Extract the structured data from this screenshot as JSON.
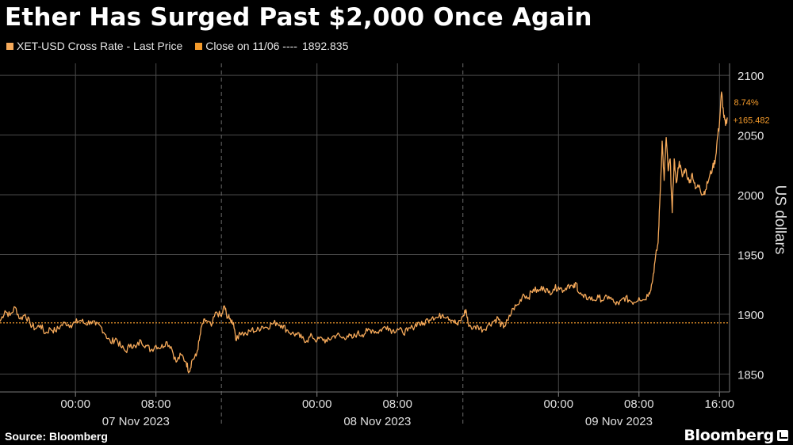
{
  "title": "Ether Has Surged Past $2,000 Once Again",
  "legend": [
    {
      "label": "XET-USD Cross Rate - Last Price",
      "color": "#f5a95a"
    },
    {
      "label": "Close on 11/06 ----",
      "value": "1892.835",
      "color": "#f39a2b"
    }
  ],
  "source": "Source: Bloomberg",
  "brand": "Bloomberg",
  "chart_data": {
    "type": "line",
    "ylabel": "US dollars",
    "ylim": [
      1835,
      2110
    ],
    "y_ticks": [
      1850,
      1900,
      1950,
      2000,
      2050,
      2100
    ],
    "x_range_hours": [
      -7.5,
      65
    ],
    "x_time_ticks": [
      {
        "h": 0,
        "label": "00:00"
      },
      {
        "h": 8,
        "label": "08:00"
      },
      {
        "h": 24,
        "label": "00:00"
      },
      {
        "h": 32,
        "label": "08:00"
      },
      {
        "h": 48,
        "label": "00:00"
      },
      {
        "h": 56,
        "label": "08:00"
      },
      {
        "h": 64,
        "label": "16:00"
      }
    ],
    "x_date_labels": [
      {
        "h": 6,
        "label": "07 Nov 2023"
      },
      {
        "h": 30,
        "label": "08 Nov 2023"
      },
      {
        "h": 54,
        "label": "09 Nov 2023"
      }
    ],
    "day_separators_h": [
      14.5,
      38.5
    ],
    "grid": true,
    "reference_line": {
      "label": "Close on 11/06",
      "value": 1892.835
    },
    "annotations": {
      "pct": "8.74%",
      "change": "+165.482"
    },
    "series": [
      {
        "name": "XET-USD Cross Rate - Last Price",
        "color": "#f5a95a",
        "points": [
          [
            -7.5,
            1894
          ],
          [
            -7.0,
            1903
          ],
          [
            -6.5,
            1899
          ],
          [
            -6.0,
            1906
          ],
          [
            -5.5,
            1896
          ],
          [
            -5.0,
            1900
          ],
          [
            -4.5,
            1892
          ],
          [
            -4.0,
            1888
          ],
          [
            -3.5,
            1891
          ],
          [
            -3.0,
            1884
          ],
          [
            -2.5,
            1888
          ],
          [
            -2.0,
            1886
          ],
          [
            -1.5,
            1890
          ],
          [
            -1.0,
            1893
          ],
          [
            -0.5,
            1891
          ],
          [
            0,
            1893
          ],
          [
            0.5,
            1895
          ],
          [
            1.0,
            1892
          ],
          [
            1.5,
            1894
          ],
          [
            2.0,
            1891
          ],
          [
            2.5,
            1890
          ],
          [
            3.0,
            1883
          ],
          [
            3.5,
            1876
          ],
          [
            4.0,
            1880
          ],
          [
            4.5,
            1873
          ],
          [
            5.0,
            1869
          ],
          [
            5.5,
            1875
          ],
          [
            6.0,
            1872
          ],
          [
            6.5,
            1878
          ],
          [
            7.0,
            1874
          ],
          [
            7.5,
            1870
          ],
          [
            8.0,
            1874
          ],
          [
            8.5,
            1872
          ],
          [
            9.0,
            1877
          ],
          [
            9.5,
            1873
          ],
          [
            10.0,
            1860
          ],
          [
            10.5,
            1866
          ],
          [
            11.0,
            1860
          ],
          [
            11.3,
            1852
          ],
          [
            11.6,
            1862
          ],
          [
            12.0,
            1865
          ],
          [
            12.3,
            1878
          ],
          [
            12.6,
            1892
          ],
          [
            13.0,
            1895
          ],
          [
            13.5,
            1890
          ],
          [
            14.0,
            1902
          ],
          [
            14.5,
            1898
          ],
          [
            14.8,
            1907
          ],
          [
            15.0,
            1900
          ],
          [
            15.3,
            1896
          ],
          [
            15.7,
            1893
          ],
          [
            16.0,
            1878
          ],
          [
            16.3,
            1885
          ],
          [
            17.0,
            1883
          ],
          [
            17.5,
            1887
          ],
          [
            18.0,
            1886
          ],
          [
            18.5,
            1890
          ],
          [
            19.0,
            1889
          ],
          [
            19.5,
            1892
          ],
          [
            20.0,
            1893
          ],
          [
            20.5,
            1891
          ],
          [
            21.0,
            1887
          ],
          [
            21.5,
            1884
          ],
          [
            22.0,
            1883
          ],
          [
            22.5,
            1880
          ],
          [
            23.0,
            1878
          ],
          [
            23.5,
            1882
          ],
          [
            24.0,
            1878
          ],
          [
            24.5,
            1880
          ],
          [
            25.0,
            1877
          ],
          [
            25.5,
            1881
          ],
          [
            26.0,
            1883
          ],
          [
            26.5,
            1880
          ],
          [
            27.0,
            1882
          ],
          [
            27.5,
            1880
          ],
          [
            28.0,
            1884
          ],
          [
            28.5,
            1883
          ],
          [
            29.0,
            1886
          ],
          [
            29.5,
            1887
          ],
          [
            30.0,
            1885
          ],
          [
            30.5,
            1888
          ],
          [
            31.0,
            1890
          ],
          [
            31.5,
            1886
          ],
          [
            32.0,
            1888
          ],
          [
            32.5,
            1885
          ],
          [
            33.0,
            1886
          ],
          [
            33.5,
            1889
          ],
          [
            34.0,
            1893
          ],
          [
            34.5,
            1891
          ],
          [
            35.0,
            1896
          ],
          [
            35.5,
            1898
          ],
          [
            36.0,
            1897
          ],
          [
            36.5,
            1900
          ],
          [
            37.0,
            1898
          ],
          [
            37.5,
            1895
          ],
          [
            38.0,
            1891
          ],
          [
            38.5,
            1898
          ],
          [
            38.8,
            1904
          ],
          [
            39.0,
            1893
          ],
          [
            39.5,
            1888
          ],
          [
            40.0,
            1890
          ],
          [
            40.5,
            1887
          ],
          [
            41.0,
            1891
          ],
          [
            41.5,
            1894
          ],
          [
            42.0,
            1897
          ],
          [
            42.3,
            1891
          ],
          [
            42.6,
            1890
          ],
          [
            43.0,
            1895
          ],
          [
            43.5,
            1905
          ],
          [
            44.0,
            1908
          ],
          [
            44.5,
            1917
          ],
          [
            45.0,
            1914
          ],
          [
            45.5,
            1921
          ],
          [
            46.0,
            1919
          ],
          [
            46.5,
            1923
          ],
          [
            47.0,
            1918
          ],
          [
            47.5,
            1921
          ],
          [
            48.0,
            1923
          ],
          [
            48.5,
            1920
          ],
          [
            49.0,
            1925
          ],
          [
            49.5,
            1922
          ],
          [
            49.8,
            1926
          ],
          [
            50.0,
            1918
          ],
          [
            50.5,
            1914
          ],
          [
            51.0,
            1914
          ],
          [
            51.5,
            1912
          ],
          [
            52.0,
            1914
          ],
          [
            52.5,
            1912
          ],
          [
            53.0,
            1915
          ],
          [
            53.5,
            1910
          ],
          [
            54.0,
            1908
          ],
          [
            54.5,
            1914
          ],
          [
            55.0,
            1912
          ],
          [
            55.5,
            1910
          ],
          [
            56.0,
            1914
          ],
          [
            56.5,
            1912
          ],
          [
            57.0,
            1918
          ],
          [
            57.3,
            1926
          ],
          [
            57.6,
            1945
          ],
          [
            57.9,
            1960
          ],
          [
            58.1,
            2000
          ],
          [
            58.3,
            2045
          ],
          [
            58.5,
            2012
          ],
          [
            58.7,
            2048
          ],
          [
            58.9,
            2020
          ],
          [
            59.1,
            2030
          ],
          [
            59.3,
            1985
          ],
          [
            59.5,
            2030
          ],
          [
            59.7,
            2010
          ],
          [
            60.0,
            2028
          ],
          [
            60.3,
            2015
          ],
          [
            60.6,
            2022
          ],
          [
            61.0,
            2010
          ],
          [
            61.3,
            2018
          ],
          [
            61.6,
            2005
          ],
          [
            62.0,
            2008
          ],
          [
            62.3,
            2000
          ],
          [
            62.6,
            2004
          ],
          [
            63.0,
            2015
          ],
          [
            63.3,
            2022
          ],
          [
            63.6,
            2030
          ],
          [
            63.8,
            2048
          ],
          [
            64.0,
            2060
          ],
          [
            64.2,
            2086
          ],
          [
            64.4,
            2068
          ],
          [
            64.6,
            2058
          ],
          [
            64.8,
            2064
          ]
        ]
      }
    ]
  }
}
